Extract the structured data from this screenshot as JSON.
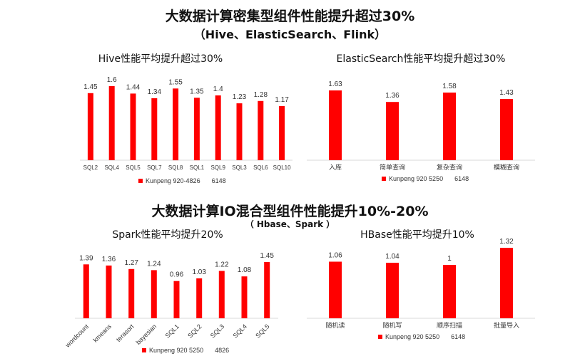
{
  "section1": {
    "title": "大数据计算密集型组件性能提升超过30%",
    "subtitle": "（Hive、ElasticSearch、Flink）"
  },
  "section2": {
    "title": "大数据计算IO混合型组件性能提升10%-20%",
    "subtitle": "（ Hbase、Spark ）"
  },
  "colors": {
    "bar": "#ff0000",
    "axis": "#d9d9d9",
    "text": "#333333"
  },
  "chart_data": [
    {
      "type": "bar",
      "title": "Hive性能平均提升超过30%",
      "categories": [
        "SQL2",
        "SQL4",
        "SQL5",
        "SQL7",
        "SQL8",
        "SQL1",
        "SQL9",
        "SQL3",
        "SQL6",
        "SQL10"
      ],
      "values": [
        1.45,
        1.6,
        1.44,
        1.34,
        1.55,
        1.35,
        1.4,
        1.23,
        1.28,
        1.17
      ],
      "value_labels": [
        "1.45",
        "1.6",
        "1.44",
        "1.34",
        "1.55",
        "1.35",
        "1.4",
        "1.23",
        "1.28",
        "1.17"
      ],
      "ylim": [
        0,
        1.6
      ],
      "legend": {
        "label": "Kunpeng 920-4826",
        "extra": "6148"
      }
    },
    {
      "type": "bar",
      "title": "ElasticSearch性能平均提升超过30%",
      "categories": [
        "入库",
        "简单查询",
        "复杂查询",
        "模糊查询"
      ],
      "values": [
        1.63,
        1.36,
        1.58,
        1.43
      ],
      "value_labels": [
        "1.63",
        "1.36",
        "1.58",
        "1.43"
      ],
      "ylim": [
        0,
        1.63
      ],
      "legend": {
        "label": "Kunpeng 920 5250",
        "extra": "6148"
      }
    },
    {
      "type": "bar",
      "title": "Spark性能平均提升20%",
      "categories": [
        "wordcount",
        "kmeans",
        "terasort",
        "bayesian",
        "SQL1",
        "SQL2",
        "SQL3",
        "SQL4",
        "SQL5"
      ],
      "values": [
        1.39,
        1.36,
        1.27,
        1.24,
        0.96,
        1.03,
        1.22,
        1.08,
        1.45
      ],
      "value_labels": [
        "1.39",
        "1.36",
        "1.27",
        "1.24",
        "0.96",
        "1.03",
        "1.22",
        "1.08",
        "1.45"
      ],
      "ylim": [
        0,
        1.45
      ],
      "legend": {
        "label": "Kunpeng 920 5250",
        "extra": "4826"
      }
    },
    {
      "type": "bar",
      "title": "HBase性能平均提升10%",
      "categories": [
        "随机读",
        "随机写",
        "顺序扫描",
        "批量导入"
      ],
      "values": [
        1.06,
        1.04,
        1,
        1.32
      ],
      "value_labels": [
        "1.06",
        "1.04",
        "1",
        "1.32"
      ],
      "ylim": [
        0,
        1.32
      ],
      "legend": {
        "label": "Kunpeng 920 5250",
        "extra": "6148"
      }
    }
  ]
}
